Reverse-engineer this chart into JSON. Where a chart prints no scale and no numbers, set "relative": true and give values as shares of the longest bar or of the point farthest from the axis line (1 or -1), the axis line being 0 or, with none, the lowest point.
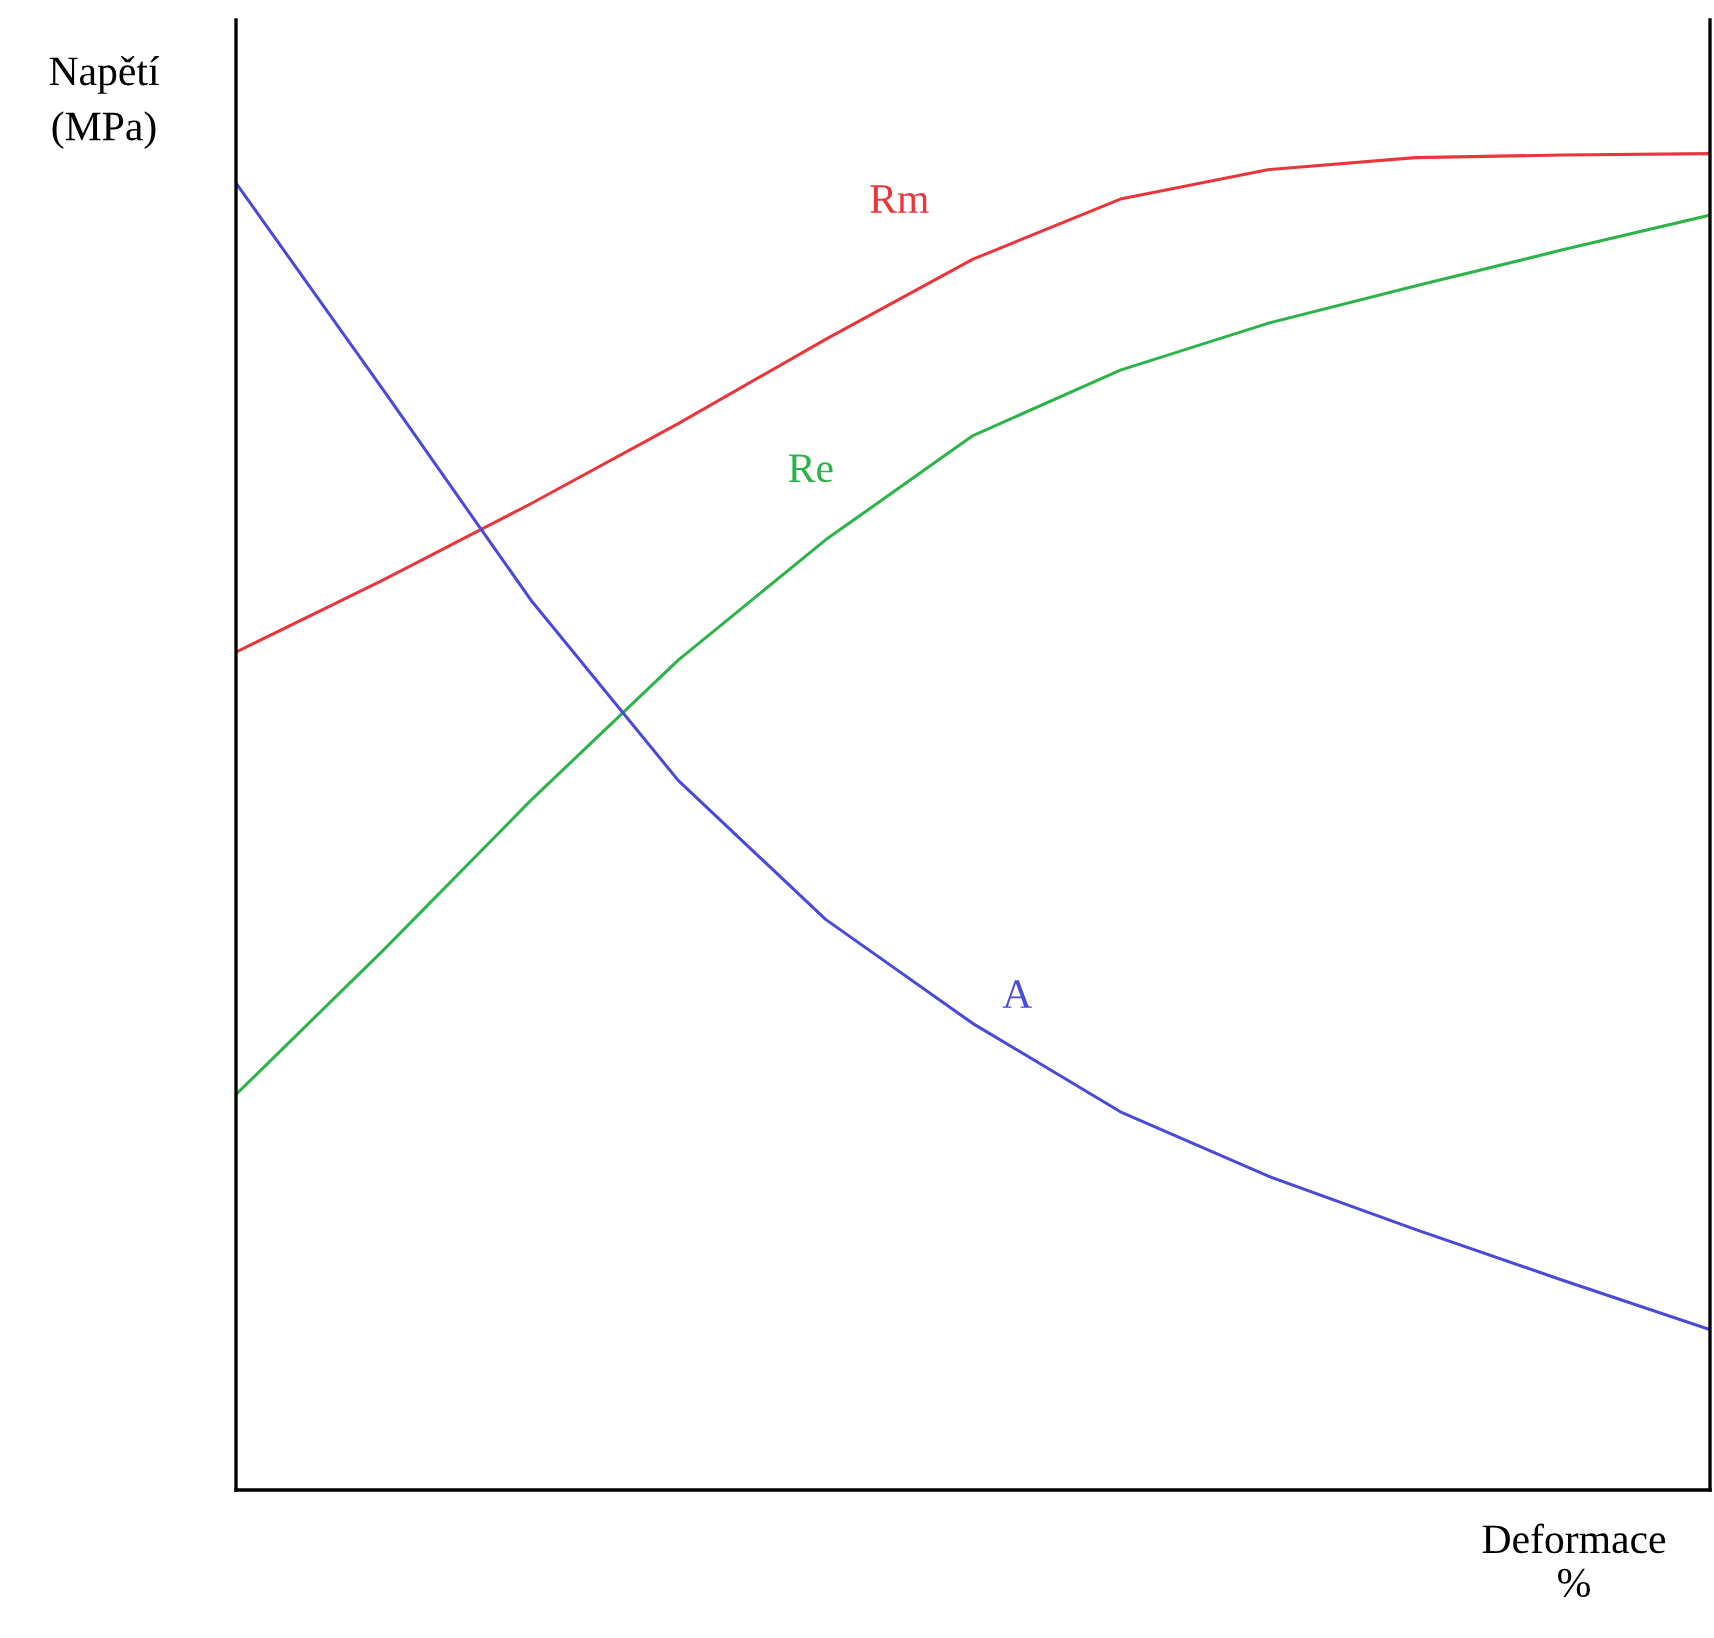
{
  "chart_data": {
    "type": "line",
    "relative": true,
    "xlabel": "Deformace\n%",
    "ylabel": "Napětí\n(MPa)",
    "categories": [
      null,
      null,
      null,
      null,
      null,
      null,
      null,
      null,
      null,
      null,
      null
    ],
    "series": [
      {
        "name": "Rm",
        "color": "#e8373c",
        "values": [
          0.627,
          0.681,
          0.738,
          0.798,
          0.861,
          0.921,
          0.966,
          0.988,
          0.997,
          0.999,
          1.0
        ]
      },
      {
        "name": "Re",
        "color": "#2db34a",
        "values": [
          0.296,
          0.404,
          0.516,
          0.621,
          0.711,
          0.789,
          0.838,
          0.873,
          0.901,
          0.928,
          0.954
        ]
      },
      {
        "name": "A",
        "color": "#4a4ad8",
        "values": [
          0.978,
          0.823,
          0.666,
          0.531,
          0.427,
          0.349,
          0.283,
          0.235,
          0.195,
          0.157,
          0.12
        ]
      }
    ],
    "legend": false,
    "marker": "none",
    "line_style": "solid"
  }
}
